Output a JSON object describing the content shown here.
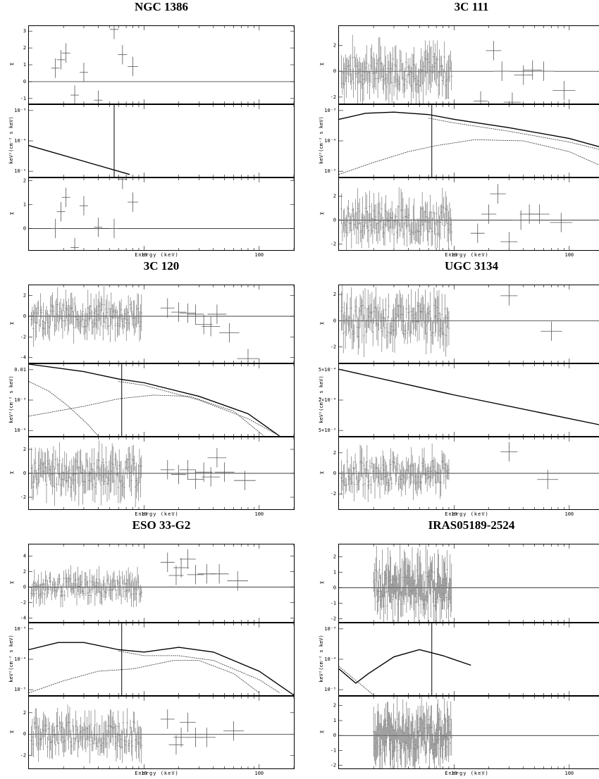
{
  "chart_data": [
    {
      "type": "scatter",
      "title": "NGC 1386",
      "xlabel": "Energy (keV)",
      "x_log": true,
      "x_ticks": [
        "10",
        "100"
      ],
      "panels": [
        {
          "ylabel": "χ",
          "ylim": [
            -1.3,
            3.3
          ],
          "yticks": [
            -1,
            0,
            1,
            2,
            3
          ],
          "zero_line": true,
          "data": [
            [
              1.7,
              0.8
            ],
            [
              1.9,
              1.3
            ],
            [
              2.1,
              1.7
            ],
            [
              2.5,
              -0.8
            ],
            [
              3.0,
              0.55
            ],
            [
              4.0,
              -1.1
            ],
            [
              5.5,
              3.1
            ],
            [
              6.5,
              1.6
            ],
            [
              8.0,
              0.9
            ]
          ]
        },
        {
          "ylabel": "keV²(cm⁻² s keV)",
          "ylim_log": [
            -5.3,
            -2.2
          ],
          "ytick_labels": [
            "10⁻³",
            "10⁻⁴",
            "10⁻⁵"
          ],
          "models": [
            {
              "name": "total",
              "points": [
                [
                  1.0,
                  -3.95
                ],
                [
                  7.5,
                  -5.2
                ]
              ]
            }
          ],
          "line_energy": 5.5
        },
        {
          "ylabel": "χ",
          "ylim": [
            -0.9,
            2.1
          ],
          "yticks": [
            0,
            1,
            2
          ],
          "zero_line": true,
          "data": [
            [
              1.7,
              0.0
            ],
            [
              1.9,
              0.7
            ],
            [
              2.1,
              1.3
            ],
            [
              2.5,
              -0.8
            ],
            [
              3.0,
              0.95
            ],
            [
              4.0,
              0.05
            ],
            [
              5.5,
              0.0
            ],
            [
              6.5,
              2.05
            ],
            [
              8.0,
              1.1
            ]
          ]
        }
      ]
    },
    {
      "type": "scatter",
      "title": "3C 111",
      "xlabel": "Energy (keV)",
      "x_log": true,
      "x_ticks": [
        "10",
        "100"
      ],
      "panels": [
        {
          "ylabel": "χ",
          "ylim": [
            -2.5,
            3.5
          ],
          "yticks": [
            -2,
            0,
            2
          ],
          "zero_line": true,
          "data": [
            [
              17,
              -2.3
            ],
            [
              22,
              1.6
            ],
            [
              26,
              0.0
            ],
            [
              32,
              -2.4
            ],
            [
              40,
              -0.3
            ],
            [
              48,
              0.1
            ],
            [
              60,
              0.0
            ],
            [
              90,
              -1.5
            ]
          ]
        },
        {
          "ylabel": "keV²(cm⁻² s keV)",
          "ylim_log": [
            -5.4,
            -2.4
          ],
          "ytick_labels": [
            "10⁻³",
            "10⁻⁴",
            "10⁻⁵"
          ],
          "models": [
            {
              "name": "total",
              "points": [
                [
                  1.0,
                  -3.0
                ],
                [
                  1.7,
                  -2.75
                ],
                [
                  3,
                  -2.7
                ],
                [
                  6,
                  -2.8
                ],
                [
                  10,
                  -3.0
                ],
                [
                  30,
                  -3.35
                ],
                [
                  100,
                  -3.8
                ],
                [
                  200,
                  -4.2
                ]
              ]
            },
            {
              "name": "powerlaw",
              "points": [
                [
                  6,
                  -2.95
                ],
                [
                  10,
                  -3.15
                ],
                [
                  30,
                  -3.5
                ],
                [
                  100,
                  -3.95
                ],
                [
                  200,
                  -4.3
                ]
              ]
            },
            {
              "name": "reflection",
              "points": [
                [
                  1.0,
                  -5.3
                ],
                [
                  2,
                  -4.8
                ],
                [
                  4,
                  -4.35
                ],
                [
                  7,
                  -4.1
                ],
                [
                  15,
                  -3.85
                ],
                [
                  40,
                  -3.9
                ],
                [
                  100,
                  -4.35
                ],
                [
                  200,
                  -5.0
                ]
              ]
            }
          ],
          "line_energy": 6.4
        },
        {
          "ylabel": "χ",
          "ylim": [
            -2.5,
            3.5
          ],
          "yticks": [
            -2,
            0,
            2
          ],
          "zero_line": true,
          "data": [
            [
              16,
              -1.1
            ],
            [
              20,
              0.5
            ],
            [
              24,
              2.2
            ],
            [
              30,
              -1.8
            ],
            [
              38,
              0.0
            ],
            [
              45,
              0.5
            ],
            [
              55,
              0.5
            ],
            [
              85,
              -0.2
            ]
          ]
        }
      ]
    },
    {
      "type": "scatter",
      "title": "3C 120",
      "xlabel": "Energy (keV)",
      "x_log": true,
      "x_ticks": [
        "10",
        "100"
      ],
      "panels": [
        {
          "ylabel": "χ",
          "ylim": [
            -4.5,
            3.0
          ],
          "yticks": [
            -4,
            -2,
            0,
            2
          ],
          "zero_line": true,
          "data": [
            [
              16,
              0.8
            ],
            [
              20,
              0.4
            ],
            [
              24,
              0.3
            ],
            [
              28,
              0.2
            ],
            [
              33,
              -0.8
            ],
            [
              38,
              -1.0
            ],
            [
              43,
              0.2
            ],
            [
              55,
              -1.6
            ],
            [
              80,
              -4.1
            ]
          ]
        },
        {
          "ylabel": "keV²(cm⁻² s keV)",
          "ylim_log": [
            -5.5,
            -2.6
          ],
          "ytick_labels": [
            "0.01",
            "10⁻³",
            "10⁻⁴"
          ],
          "models": [
            {
              "name": "total",
              "points": [
                [
                  1.0,
                  -2.6
                ],
                [
                  3,
                  -2.9
                ],
                [
                  6,
                  -3.2
                ],
                [
                  10,
                  -3.35
                ],
                [
                  30,
                  -3.9
                ],
                [
                  80,
                  -4.6
                ],
                [
                  150,
                  -5.5
                ]
              ]
            },
            {
              "name": "powerlaw",
              "points": [
                [
                  6,
                  -3.3
                ],
                [
                  10,
                  -3.45
                ],
                [
                  30,
                  -4.05
                ],
                [
                  80,
                  -4.8
                ],
                [
                  150,
                  -5.5
                ]
              ]
            },
            {
              "name": "reflection",
              "points": [
                [
                  1.0,
                  -4.7
                ],
                [
                  3,
                  -4.3
                ],
                [
                  6,
                  -4.0
                ],
                [
                  12,
                  -3.85
                ],
                [
                  25,
                  -3.9
                ],
                [
                  60,
                  -4.5
                ],
                [
                  110,
                  -5.5
                ]
              ]
            },
            {
              "name": "soft",
              "points": [
                [
                  1.0,
                  -3.3
                ],
                [
                  1.5,
                  -3.7
                ],
                [
                  2.2,
                  -4.3
                ],
                [
                  3.2,
                  -5.0
                ],
                [
                  4,
                  -5.5
                ]
              ]
            }
          ],
          "line_energy": 6.4
        },
        {
          "ylabel": "χ",
          "ylim": [
            -3.0,
            3.0
          ],
          "yticks": [
            -2,
            0,
            2
          ],
          "zero_line": true,
          "data": [
            [
              16,
              0.3
            ],
            [
              20,
              -0.1
            ],
            [
              24,
              0.3
            ],
            [
              28,
              -0.5
            ],
            [
              33,
              0.1
            ],
            [
              38,
              -0.3
            ],
            [
              43,
              1.3
            ],
            [
              50,
              0.1
            ],
            [
              75,
              -0.6
            ]
          ]
        }
      ]
    },
    {
      "type": "scatter",
      "title": "UGC 3134",
      "xlabel": "Energy (keV)",
      "x_log": true,
      "x_ticks": [
        "10",
        "100"
      ],
      "panels": [
        {
          "ylabel": "χ",
          "ylim": [
            -3.2,
            2.7
          ],
          "yticks": [
            -2,
            0,
            2
          ],
          "zero_line": true,
          "data": [
            [
              30,
              1.9
            ],
            [
              70,
              -0.8
            ]
          ]
        },
        {
          "ylabel": "keV²(cm⁻² s keV)",
          "ylim_log": [
            -4.6,
            -3.9
          ],
          "ytick_labels": [
            "5×10⁻⁴",
            "2×10⁻⁴",
            "5×10⁻⁵"
          ],
          "models": [
            {
              "name": "total",
              "points": [
                [
                  1.0,
                  -3.95
                ],
                [
                  10,
                  -4.2
                ],
                [
                  200,
                  -4.5
                ]
              ]
            }
          ]
        },
        {
          "ylabel": "χ",
          "ylim": [
            -3.5,
            3.5
          ],
          "yticks": [
            -2,
            0,
            2
          ],
          "zero_line": true,
          "data": [
            [
              30,
              2.1
            ],
            [
              65,
              -0.6
            ]
          ]
        }
      ]
    },
    {
      "type": "scatter",
      "title": "ESO 33-G2",
      "xlabel": "Energy (keV)",
      "x_log": true,
      "x_ticks": [
        "10",
        "100"
      ],
      "panels": [
        {
          "ylabel": "χ",
          "ylim": [
            -4.5,
            5.5
          ],
          "yticks": [
            -4,
            -2,
            0,
            2,
            4
          ],
          "zero_line": true,
          "data": [
            [
              16,
              3.2
            ],
            [
              19,
              1.5
            ],
            [
              21,
              2.5
            ],
            [
              24,
              3.6
            ],
            [
              28,
              1.6
            ],
            [
              35,
              1.7
            ],
            [
              45,
              1.7
            ],
            [
              65,
              0.8
            ]
          ]
        },
        {
          "ylabel": "keV²(cm⁻² s keV)",
          "ylim_log": [
            -5.4,
            -2.4
          ],
          "ytick_labels": [
            "10⁻³",
            "10⁻⁴",
            "10⁻⁵"
          ],
          "models": [
            {
              "name": "total",
              "points": [
                [
                  1.0,
                  -3.5
                ],
                [
                  1.8,
                  -3.2
                ],
                [
                  3,
                  -3.2
                ],
                [
                  6,
                  -3.5
                ],
                [
                  10,
                  -3.6
                ],
                [
                  20,
                  -3.4
                ],
                [
                  40,
                  -3.6
                ],
                [
                  100,
                  -4.4
                ],
                [
                  200,
                  -5.4
                ]
              ]
            },
            {
              "name": "powerlaw",
              "points": [
                [
                  6,
                  -3.55
                ],
                [
                  10,
                  -3.75
                ],
                [
                  20,
                  -3.75
                ],
                [
                  40,
                  -3.95
                ],
                [
                  100,
                  -4.75
                ],
                [
                  150,
                  -5.3
                ]
              ]
            },
            {
              "name": "reflection",
              "points": [
                [
                  1.0,
                  -5.3
                ],
                [
                  2,
                  -4.8
                ],
                [
                  4,
                  -4.4
                ],
                [
                  8,
                  -4.3
                ],
                [
                  18,
                  -3.95
                ],
                [
                  30,
                  -3.95
                ],
                [
                  60,
                  -4.5
                ],
                [
                  100,
                  -5.3
                ]
              ]
            }
          ],
          "line_energy": 6.4
        },
        {
          "ylabel": "χ",
          "ylim": [
            -3.2,
            3.5
          ],
          "yticks": [
            -2,
            0,
            2
          ],
          "zero_line": true,
          "data": [
            [
              16,
              1.4
            ],
            [
              19,
              -1.0
            ],
            [
              21,
              -0.3
            ],
            [
              24,
              1.1
            ],
            [
              28,
              -0.3
            ],
            [
              35,
              -0.3
            ],
            [
              60,
              0.3
            ]
          ]
        }
      ]
    },
    {
      "type": "scatter",
      "title": "IRAS05189-2524",
      "xlabel": "Energy (keV)",
      "x_log": true,
      "x_ticks": [
        "10",
        "100"
      ],
      "panels": [
        {
          "ylabel": "χ",
          "ylim": [
            -2.2,
            2.8
          ],
          "yticks": [
            -2,
            -1,
            0,
            1,
            2
          ],
          "zero_line": true,
          "data": []
        },
        {
          "ylabel": "keV²(cm⁻² s keV)",
          "ylim_log": [
            -5.4,
            -2.4
          ],
          "ytick_labels": [
            "10⁻³",
            "10⁻⁴",
            "10⁻⁵"
          ],
          "models": [
            {
              "name": "total",
              "points": [
                [
                  1.0,
                  -4.3
                ],
                [
                  1.4,
                  -4.9
                ],
                [
                  1.8,
                  -4.5
                ],
                [
                  3,
                  -3.8
                ],
                [
                  5,
                  -3.5
                ],
                [
                  8,
                  -3.75
                ],
                [
                  14,
                  -4.15
                ]
              ]
            },
            {
              "name": "component",
              "points": [
                [
                  1.0,
                  -4.2
                ],
                [
                  1.5,
                  -4.9
                ],
                [
                  2.0,
                  -5.4
                ]
              ]
            }
          ],
          "line_energy": 6.4
        },
        {
          "ylabel": "χ",
          "ylim": [
            -2.2,
            2.6
          ],
          "yticks": [
            -2,
            -1,
            0,
            1,
            2
          ],
          "zero_line": true,
          "data": []
        }
      ]
    }
  ]
}
